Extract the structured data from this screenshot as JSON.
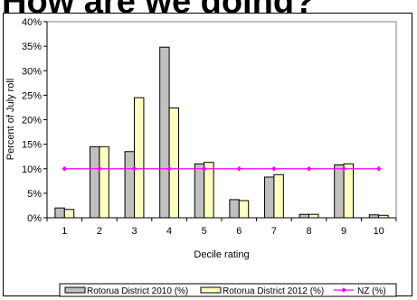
{
  "slide": {
    "title": "How are we doing?"
  },
  "chart_data": {
    "type": "bar",
    "categories": [
      "1",
      "2",
      "3",
      "4",
      "5",
      "6",
      "7",
      "8",
      "9",
      "10"
    ],
    "series": [
      {
        "name": "Rotorua District 2010 (%)",
        "kind": "bar",
        "color": "#c0c0c0",
        "values": [
          2.0,
          14.5,
          13.5,
          34.8,
          11.0,
          3.7,
          8.3,
          0.7,
          10.8,
          0.6
        ]
      },
      {
        "name": "Rotorua District 2012 (%)",
        "kind": "bar",
        "color": "#ffffc0",
        "values": [
          1.7,
          14.5,
          24.5,
          22.4,
          11.3,
          3.5,
          8.8,
          0.7,
          11.0,
          0.5
        ]
      },
      {
        "name": "NZ (%)",
        "kind": "line",
        "color": "#ff00ff",
        "values": [
          10,
          10,
          10,
          10,
          10,
          10,
          10,
          10,
          10,
          10
        ]
      }
    ],
    "xlabel": "Decile rating",
    "ylabel": "Percent of July roll",
    "ylim": [
      0,
      40
    ],
    "yticks": [
      "0%",
      "5%",
      "10%",
      "15%",
      "20%",
      "25%",
      "30%",
      "35%",
      "40%"
    ],
    "grid": false,
    "legend": "bottom"
  }
}
